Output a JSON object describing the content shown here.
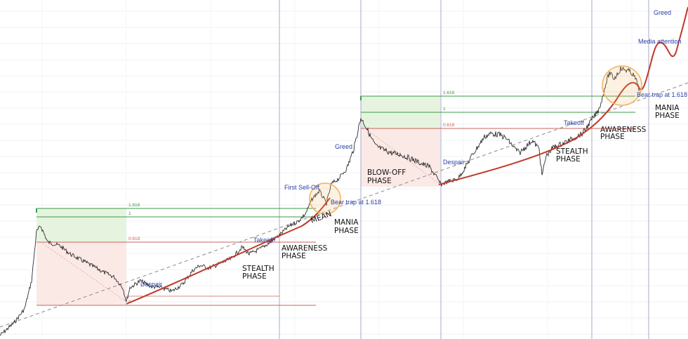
{
  "chart_data": {
    "type": "line",
    "title": "",
    "xlabel": "",
    "ylabel": "",
    "grid": true,
    "colors": {
      "price": "#2e2e2e",
      "curve": "#c0392b",
      "fib_green": "#3b9a4a",
      "fib_red": "#c8655a",
      "green_zone": "#e6f4df",
      "red_zone": "#fbe9e6",
      "highlight": "#f3b35b",
      "cycle_line": "#a9a9c8",
      "annotation": "#2a3fa8"
    },
    "fib_sets": [
      {
        "labels": [
          "1.618",
          "1",
          "0.618",
          "0"
        ]
      },
      {
        "labels": [
          "1.618",
          "1",
          "0.618"
        ]
      }
    ],
    "annotations": [
      "Greed",
      "Media attention",
      "Bear trap at 1.618",
      "MANIA",
      "PHASE",
      "Takeoff",
      "AWARENESS",
      "PHASE",
      "STEALTH",
      "PHASE",
      "Despair",
      "1.618",
      "1",
      "0.618",
      "Greed",
      "BLOW-OFF",
      "PHASE",
      "First Sell-Off",
      "Bear trap at 1.618",
      "MEAN",
      "MANIA",
      "PHASE",
      "Takeoff",
      "AWARENESS",
      "PHASE",
      "STEALTH",
      "PHASE",
      "Despair",
      "1.618",
      "1",
      "0.618",
      "0"
    ]
  }
}
